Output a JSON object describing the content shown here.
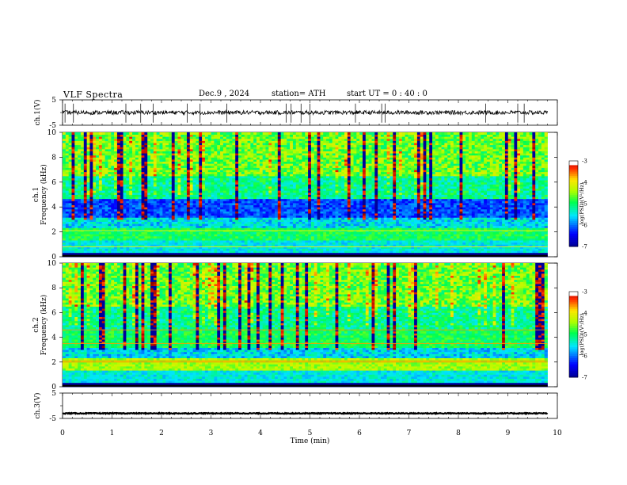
{
  "header": {
    "title": "VLF  Spectra",
    "date": "Dec.9  , 2024",
    "station": "station= ATH",
    "start": "start  UT  =   0 : 40 : 0"
  },
  "chart_data": [
    {
      "type": "line",
      "name": "ch1-waveform",
      "ylabel": "ch.1(V)",
      "ylim": [
        -5,
        5
      ],
      "yticks": [
        "5",
        "-5"
      ],
      "xlim": [
        0,
        10
      ],
      "trace_level_v": 0,
      "spike_times_min": [
        0.05,
        0.22,
        1.28,
        1.58,
        1.83,
        2.52,
        2.78,
        3.32,
        4.52,
        4.62,
        4.82,
        5.0,
        5.92,
        6.45,
        6.52,
        8.55,
        9.2,
        9.33
      ]
    },
    {
      "type": "heatmap",
      "name": "ch1-spectrogram",
      "ylabel": "ch.1\nFrequency  (kHz)",
      "ylim": [
        0,
        10
      ],
      "yticks": [
        "0",
        "2",
        "4",
        "6",
        "8",
        "10"
      ],
      "xlim": [
        0,
        9.8
      ],
      "colorbar": {
        "label": "log(PSD)(V²/Hz)",
        "range": [
          -7,
          -3
        ],
        "ticks": [
          "-3",
          "-4",
          "-5",
          "-6",
          "-7"
        ]
      }
    },
    {
      "type": "heatmap",
      "name": "ch2-spectrogram",
      "ylabel": "ch.2\nFrequency  (kHz)",
      "ylim": [
        0,
        10
      ],
      "yticks": [
        "0",
        "2",
        "4",
        "6",
        "8",
        "10"
      ],
      "xlim": [
        0,
        9.8
      ],
      "colorbar": {
        "label": "log(PSD)(V²/Hz)",
        "range": [
          -7,
          -3
        ],
        "ticks": [
          "-3",
          "-4",
          "-5",
          "-6",
          "-7"
        ]
      }
    },
    {
      "type": "line",
      "name": "ch3-waveform",
      "ylabel": "ch.3(V)",
      "ylim": [
        -5,
        5
      ],
      "yticks": [
        "5",
        "-5"
      ],
      "xlim": [
        0,
        10
      ],
      "trace_level_v": -3
    }
  ],
  "xaxis": {
    "label": "Time  (min)",
    "ticks": [
      "0",
      "1",
      "2",
      "3",
      "4",
      "5",
      "6",
      "7",
      "8",
      "9",
      "10"
    ]
  },
  "colors": {
    "colormap": [
      "#000000",
      "#0000ff",
      "#00ffff",
      "#00ff00",
      "#ffff00",
      "#ff0000",
      "#ffffff"
    ]
  }
}
